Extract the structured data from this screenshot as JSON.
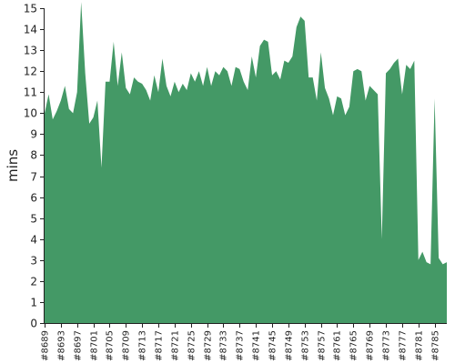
{
  "chart_data": {
    "type": "area",
    "title": "",
    "xlabel": "",
    "ylabel": "mins",
    "ylim": [
      0,
      15
    ],
    "yticks": [
      0,
      1,
      2,
      3,
      4,
      5,
      6,
      7,
      8,
      9,
      10,
      11,
      12,
      13,
      14,
      15
    ],
    "xtick_labels": [
      "#8689",
      "#8693",
      "#8697",
      "#8701",
      "#8705",
      "#8709",
      "#8713",
      "#8717",
      "#8721",
      "#8725",
      "#8729",
      "#8733",
      "#8737",
      "#8741",
      "#8745",
      "#8749",
      "#8753",
      "#8757",
      "#8761",
      "#8765",
      "#8769",
      "#8773",
      "#8777",
      "#8781",
      "#8785"
    ],
    "grid": false,
    "color": "#449966",
    "series": [
      {
        "x": [
          8689,
          8690,
          8691,
          8692,
          8693,
          8694,
          8695,
          8696,
          8697,
          8698,
          8699,
          8700,
          8701,
          8702,
          8703,
          8704,
          8705,
          8706,
          8707,
          8708,
          8709,
          8710,
          8711,
          8712,
          8713,
          8714,
          8715,
          8716,
          8717,
          8718,
          8719,
          8720,
          8721,
          8722,
          8723,
          8724,
          8725,
          8726,
          8727,
          8728,
          8729,
          8730,
          8731,
          8732,
          8733,
          8734,
          8735,
          8736,
          8737,
          8738,
          8739,
          8740,
          8741,
          8742,
          8743,
          8744,
          8745,
          8746,
          8747,
          8748,
          8749,
          8750,
          8751,
          8752,
          8753,
          8754,
          8755,
          8756,
          8757,
          8758,
          8759,
          8760,
          8761,
          8762,
          8763,
          8764,
          8765,
          8766,
          8767,
          8768,
          8769,
          8770,
          8771,
          8772,
          8773,
          8774,
          8775,
          8776,
          8777,
          8778,
          8779,
          8780,
          8781,
          8782,
          8783,
          8784,
          8785,
          8786,
          8787,
          8788
        ],
        "values": [
          10.0,
          10.9,
          9.7,
          10.1,
          10.6,
          11.3,
          10.2,
          10.0,
          11.0,
          15.3,
          11.9,
          9.5,
          9.8,
          10.6,
          7.4,
          11.5,
          11.5,
          13.4,
          11.3,
          12.9,
          11.2,
          10.9,
          11.7,
          11.5,
          11.4,
          11.1,
          10.6,
          11.8,
          11.0,
          12.6,
          11.3,
          10.8,
          11.5,
          11.0,
          11.4,
          11.1,
          11.9,
          11.5,
          12.0,
          11.3,
          12.2,
          11.3,
          12.0,
          11.8,
          12.2,
          12.0,
          11.3,
          12.2,
          12.1,
          11.5,
          11.1,
          12.7,
          11.7,
          13.2,
          13.5,
          13.4,
          11.8,
          12.0,
          11.6,
          12.5,
          12.4,
          12.7,
          14.1,
          14.6,
          14.4,
          11.7,
          11.7,
          10.6,
          12.9,
          11.2,
          10.7,
          9.9,
          10.8,
          10.7,
          9.9,
          10.3,
          12.0,
          12.1,
          12.0,
          10.6,
          11.3,
          11.1,
          10.9,
          4.0,
          11.9,
          12.1,
          12.4,
          12.6,
          10.9,
          12.3,
          12.1,
          12.5,
          3.0,
          3.4,
          2.9,
          2.8,
          10.7,
          3.1,
          2.8,
          2.9
        ]
      }
    ]
  }
}
